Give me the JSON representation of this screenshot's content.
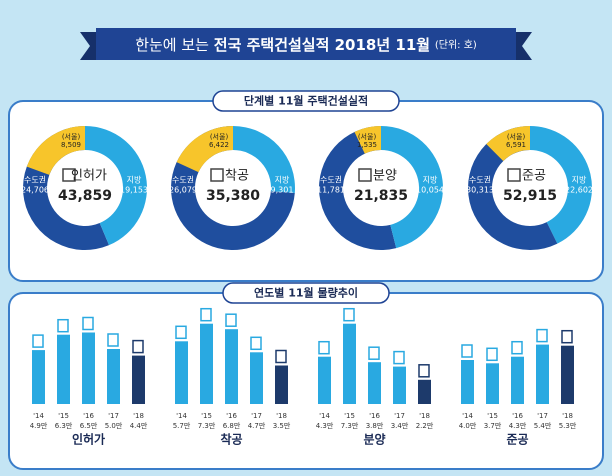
{
  "header": {
    "title_prefix": "한눈에 보는",
    "title_main": "전국 주택건설실적 2018년 11월",
    "unit": "(단위: 호)"
  },
  "sections": {
    "stage_title": "단계별 11월 주택건설실적",
    "trend_title": "연도별 11월 물량추이"
  },
  "chart_data": [
    {
      "type": "donut",
      "label": "인허가",
      "total": 43859,
      "total_label": "43,859",
      "categories": [
        "수도권",
        "지방",
        "(서울)"
      ],
      "values": [
        24706,
        19153,
        8509
      ],
      "value_labels": [
        "24,706",
        "19,153",
        "8,509"
      ],
      "colors": [
        "#1f4e9e",
        "#29a9e1",
        "#f7c52b"
      ]
    },
    {
      "type": "donut",
      "label": "착공",
      "total": 35380,
      "total_label": "35,380",
      "categories": [
        "수도권",
        "지방",
        "(서울)"
      ],
      "values": [
        26079,
        9301,
        6422
      ],
      "value_labels": [
        "26,079",
        "9,301",
        "6,422"
      ],
      "colors": [
        "#1f4e9e",
        "#29a9e1",
        "#f7c52b"
      ]
    },
    {
      "type": "donut",
      "label": "분양",
      "total": 21835,
      "total_label": "21,835",
      "categories": [
        "수도권",
        "지방",
        "(서울)"
      ],
      "values": [
        11781,
        10054,
        1535
      ],
      "value_labels": [
        "11,781",
        "10,054",
        "1,535"
      ],
      "colors": [
        "#1f4e9e",
        "#29a9e1",
        "#f7c52b"
      ]
    },
    {
      "type": "donut",
      "label": "준공",
      "total": 52915,
      "total_label": "52,915",
      "categories": [
        "수도권",
        "지방",
        "(서울)"
      ],
      "values": [
        30313,
        22602,
        6591
      ],
      "value_labels": [
        "30,313",
        "22,602",
        "6,591"
      ],
      "colors": [
        "#1f4e9e",
        "#29a9e1",
        "#f7c52b"
      ]
    },
    {
      "type": "bar",
      "title": "인허가",
      "categories": [
        "'14",
        "'15",
        "'16",
        "'17",
        "'18"
      ],
      "values": [
        4.9,
        6.3,
        6.5,
        5.0,
        4.4
      ],
      "value_labels": [
        "4.9만",
        "6.3만",
        "6.5만",
        "5.0만",
        "4.4만"
      ],
      "ylim": [
        0,
        8
      ],
      "color": "#29a9e1",
      "last_color": "#1d3a6b"
    },
    {
      "type": "bar",
      "title": "착공",
      "categories": [
        "'14",
        "'15",
        "'16",
        "'17",
        "'18"
      ],
      "values": [
        5.7,
        7.3,
        6.8,
        4.7,
        3.5
      ],
      "value_labels": [
        "5.7만",
        "7.3만",
        "6.8만",
        "4.7만",
        "3.5만"
      ],
      "ylim": [
        0,
        8
      ],
      "color": "#29a9e1",
      "last_color": "#1d3a6b"
    },
    {
      "type": "bar",
      "title": "분양",
      "categories": [
        "'14",
        "'15",
        "'16",
        "'17",
        "'18"
      ],
      "values": [
        4.3,
        7.3,
        3.8,
        3.4,
        2.2
      ],
      "value_labels": [
        "4.3만",
        "7.3만",
        "3.8만",
        "3.4만",
        "2.2만"
      ],
      "ylim": [
        0,
        8
      ],
      "color": "#29a9e1",
      "last_color": "#1d3a6b"
    },
    {
      "type": "bar",
      "title": "준공",
      "categories": [
        "'14",
        "'15",
        "'16",
        "'17",
        "'18"
      ],
      "values": [
        4.0,
        3.7,
        4.3,
        5.4,
        5.3
      ],
      "value_labels": [
        "4.0만",
        "3.7만",
        "4.3만",
        "5.4만",
        "5.3만"
      ],
      "ylim": [
        0,
        8
      ],
      "color": "#29a9e1",
      "last_color": "#1d3a6b"
    }
  ]
}
